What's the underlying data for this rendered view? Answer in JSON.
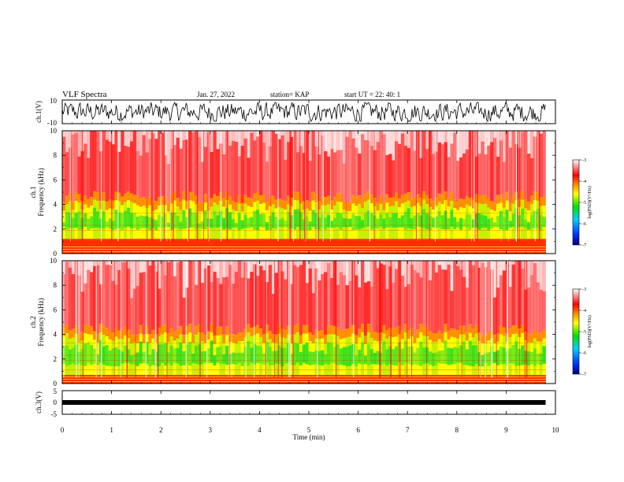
{
  "header": {
    "title": "VLF Spectra",
    "date": "Jan. 27, 2022",
    "station": "station= KAP",
    "start_ut": "start  UT =   22: 40: 1"
  },
  "colors": {
    "spectrogram": [
      "#0000aa",
      "#0060ff",
      "#00e0ff",
      "#00e000",
      "#b8f000",
      "#ffff00",
      "#ff8000",
      "#ff0000",
      "#ffffff"
    ],
    "trace": "#000000"
  },
  "chart_data": [
    {
      "type": "line",
      "name": "waveform-ch1",
      "ylabel": "ch.1(V)",
      "ylim": [
        -10,
        10
      ],
      "yticks": [
        "10",
        "-10"
      ],
      "xlim": [
        0,
        10
      ],
      "description_values": {
        "min": -8,
        "max": 8
      }
    },
    {
      "type": "heatmap",
      "name": "spectrogram-ch1",
      "ylabel_lines": [
        "ch.1",
        "Frequency  (kHz)"
      ],
      "ylim": [
        0,
        10
      ],
      "yticks": [
        "0",
        "2",
        "4",
        "6",
        "8",
        "10"
      ],
      "xlim": [
        0,
        10
      ],
      "active_band_khz": [
        1.0,
        4.6
      ],
      "colorbar": {
        "label": "log(PSD)(V²/Hz)",
        "ticks": [
          "-3",
          "-4",
          "-5",
          "-6",
          "-7"
        ],
        "range": [
          -7,
          -3
        ]
      }
    },
    {
      "type": "heatmap",
      "name": "spectrogram-ch2",
      "ylabel_lines": [
        "ch.2",
        "Frequency  (kHz)"
      ],
      "ylim": [
        0,
        10
      ],
      "yticks": [
        "0",
        "2",
        "4",
        "6",
        "8",
        "10"
      ],
      "xlim": [
        0,
        10
      ],
      "active_band_khz": [
        0.5,
        4.4
      ],
      "colorbar": {
        "label": "log(PSD)(V²/Hz)",
        "ticks": [
          "-3",
          "-4",
          "-5",
          "-6",
          "-7"
        ],
        "range": [
          -7,
          -3
        ]
      }
    },
    {
      "type": "line",
      "name": "waveform-ch3",
      "ylabel": "ch.3(V)",
      "ylim": [
        -5,
        5
      ],
      "yticks": [
        "5",
        "0",
        "-5"
      ],
      "xlim": [
        0,
        10
      ],
      "description_values": {
        "min": -0.5,
        "max": 0.5
      }
    }
  ],
  "xaxis": {
    "label": "Time  (min)",
    "ticks": [
      "0",
      "1",
      "2",
      "3",
      "4",
      "5",
      "6",
      "7",
      "8",
      "9",
      "10"
    ],
    "data_end_min": 9.8
  }
}
